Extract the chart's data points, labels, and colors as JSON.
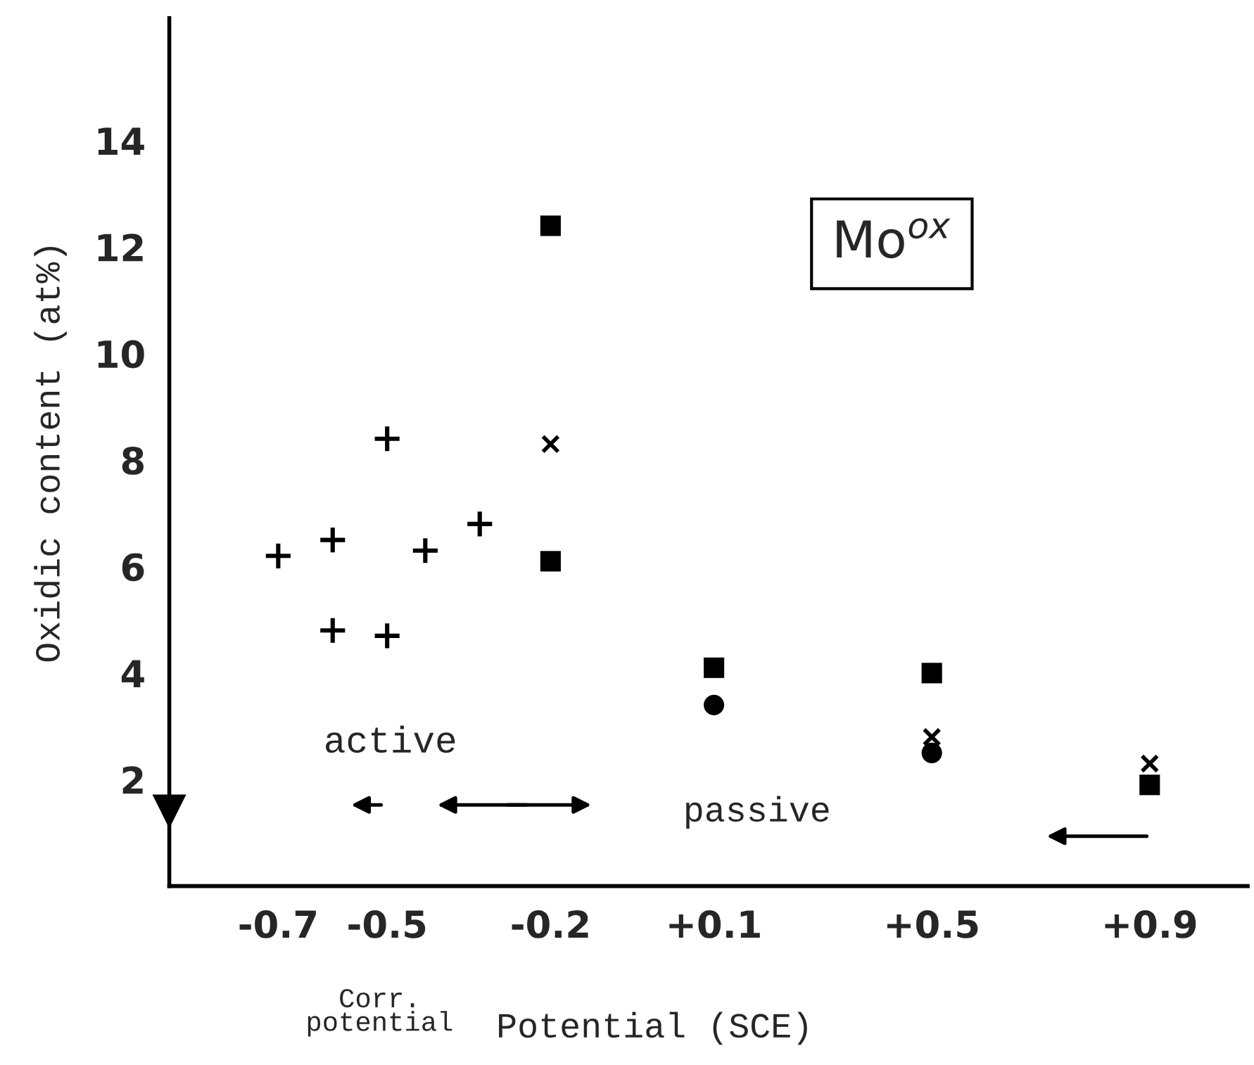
{
  "chart_data": {
    "type": "scatter",
    "xlabel": "Potential (SCE)",
    "ylabel": "Oxidic content (at%)",
    "xlim": [
      -0.9,
      1.08
    ],
    "ylim": [
      0,
      16.3
    ],
    "xticks": [
      {
        "value": -0.7,
        "label": "-0.7"
      },
      {
        "value": -0.5,
        "label": "-0.5"
      },
      {
        "value": -0.2,
        "label": "-0.2"
      },
      {
        "value": 0.1,
        "label": "+0.1"
      },
      {
        "value": 0.5,
        "label": "+0.5"
      },
      {
        "value": 0.9,
        "label": "+0.9"
      }
    ],
    "yticks": [
      2,
      4,
      6,
      8,
      10,
      12,
      14
    ],
    "grid": false,
    "legend": false,
    "series": [
      {
        "marker": "plus",
        "color": "#000000",
        "x": [
          -0.7,
          -0.6,
          -0.6,
          -0.5,
          -0.5,
          -0.43,
          -0.33
        ],
        "values": [
          6.2,
          6.5,
          4.8,
          8.4,
          4.7,
          6.3,
          6.8
        ]
      },
      {
        "marker": "square",
        "color": "#000000",
        "x": [
          -0.2,
          -0.2,
          0.1,
          0.5,
          0.9
        ],
        "values": [
          12.4,
          6.1,
          4.1,
          4.0,
          1.9
        ]
      },
      {
        "marker": "circle",
        "color": "#000000",
        "x": [
          0.1,
          0.5
        ],
        "values": [
          3.4,
          2.5
        ]
      },
      {
        "marker": "cross",
        "color": "#000000",
        "x": [
          -0.2,
          0.5,
          0.9
        ],
        "values": [
          8.3,
          2.8,
          2.3
        ]
      },
      {
        "marker": "triangle",
        "color": "#000000",
        "x": [
          -0.9
        ],
        "values": [
          1.4
        ]
      }
    ],
    "annotations": [
      "Mo$^{ox}$",
      "active",
      "passive",
      "Corr.\npotential"
    ]
  }
}
